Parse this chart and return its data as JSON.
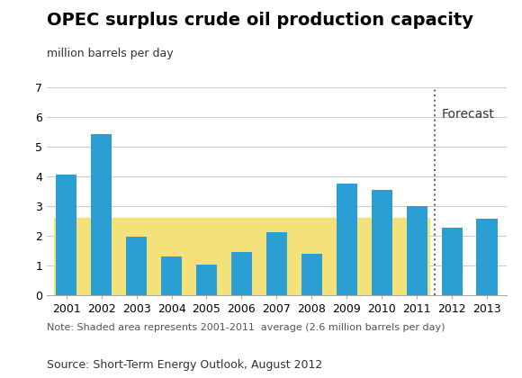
{
  "title": "OPEC surplus crude oil production capacity",
  "subtitle": "million barrels per day",
  "years": [
    2001,
    2002,
    2003,
    2004,
    2005,
    2006,
    2007,
    2008,
    2009,
    2010,
    2011,
    2012,
    2013
  ],
  "values": [
    4.05,
    5.4,
    1.95,
    1.28,
    1.02,
    1.45,
    2.1,
    1.38,
    3.75,
    3.52,
    3.0,
    2.25,
    2.55
  ],
  "bar_color": "#2b9fd4",
  "average": 2.6,
  "average_color": "#f5e17a",
  "forecast_label": "Forecast",
  "forecast_line_color": "#666666",
  "ylim": [
    0,
    7
  ],
  "yticks": [
    0,
    1,
    2,
    3,
    4,
    5,
    6,
    7
  ],
  "note": "Note: Shaded area represents 2001-2011  average (2.6 million barrels per day)",
  "source": "Source: Short-Term Energy Outlook, August 2012",
  "background_color": "#ffffff",
  "grid_color": "#cccccc",
  "title_fontsize": 14,
  "subtitle_fontsize": 9,
  "tick_fontsize": 9,
  "note_fontsize": 8,
  "source_fontsize": 9,
  "forecast_fontsize": 10
}
